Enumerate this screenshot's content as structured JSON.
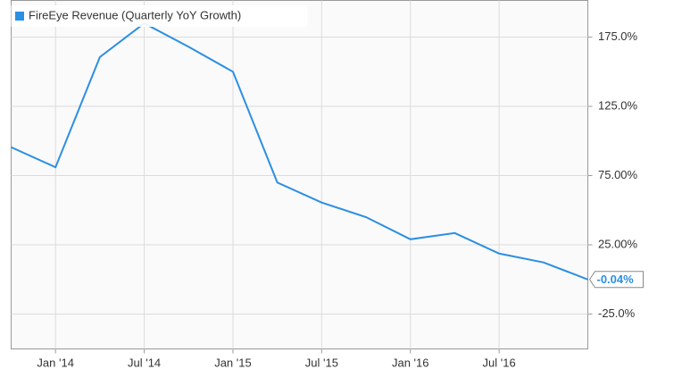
{
  "chart_data": {
    "type": "line",
    "categories": [
      null,
      "Jan '14",
      null,
      "Jul '14",
      null,
      "Jan '15",
      null,
      "Jul '15",
      null,
      "Jan '16",
      null,
      "Jul '16",
      null,
      null
    ],
    "series": [
      {
        "name": "FireEye Revenue (Quarterly YoY Growth)",
        "color": "#2b8fe3",
        "values": [
          95.5,
          81,
          160.6,
          185,
          168,
          150,
          70,
          55.5,
          45,
          29,
          33.5,
          18.7,
          12.3,
          -0.04
        ],
        "value_labels": [
          null,
          null,
          null,
          null,
          null,
          null,
          null,
          null,
          null,
          null,
          null,
          null,
          null,
          "-0.04%"
        ]
      }
    ],
    "ylim": [
      -50.2,
      201.5
    ],
    "yticks": [
      {
        "value": -25,
        "label": "-25.0%"
      },
      {
        "value": 25,
        "label": "25.00%"
      },
      {
        "value": 75,
        "label": "75.00%"
      },
      {
        "value": 125,
        "label": "125.0%"
      },
      {
        "value": 175,
        "label": "175.0%"
      }
    ],
    "grid": true,
    "legend": "top-left"
  }
}
